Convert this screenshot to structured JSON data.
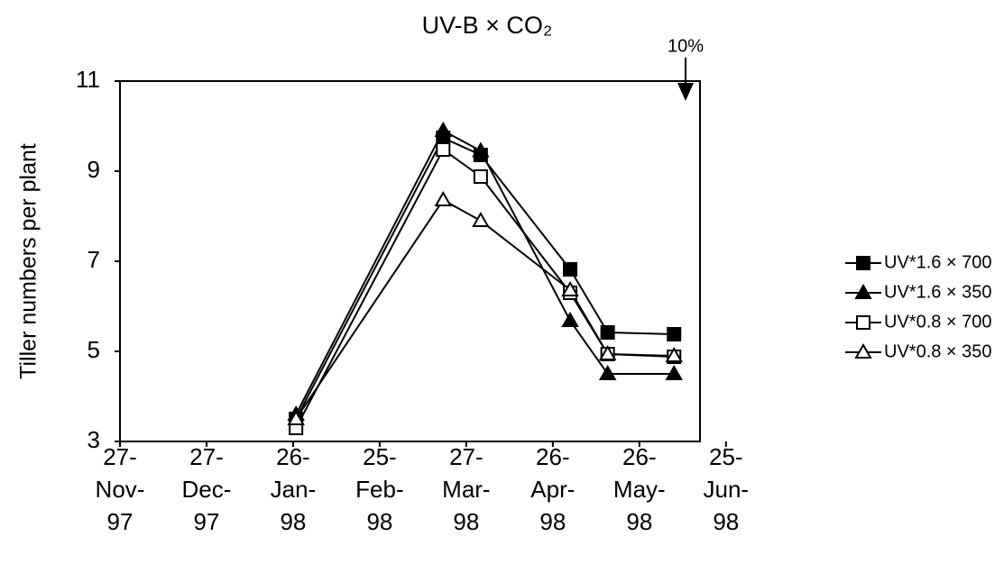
{
  "chart_data": {
    "type": "line",
    "title": "UV-B × CO₂",
    "y_label": "Tiller numbers per plant",
    "annotation": {
      "text": "10%",
      "x": "1998-06-11"
    },
    "x": [
      "1998-01-27",
      "1998-03-19",
      "1998-04-01",
      "1998-05-02",
      "1998-05-15",
      "1998-06-07"
    ],
    "series": [
      {
        "name": "UV*1.6 × 700",
        "color": "#000000",
        "marker": "square",
        "filled": true,
        "values": [
          3.5,
          9.74,
          9.36,
          6.82,
          5.42,
          5.38
        ]
      },
      {
        "name": "UV*1.6 × 350",
        "color": "#000000",
        "marker": "triangle",
        "filled": true,
        "values": [
          3.6,
          9.9,
          9.45,
          5.68,
          4.5,
          4.5
        ]
      },
      {
        "name": "UV*0.8 × 700",
        "color": "#000000",
        "marker": "square",
        "filled": false,
        "values": [
          3.3,
          9.48,
          8.88,
          6.3,
          4.94,
          4.88
        ]
      },
      {
        "name": "UV*0.8 × 350",
        "color": "#000000",
        "marker": "triangle",
        "filled": false,
        "values": [
          3.5,
          8.36,
          7.9,
          6.36,
          4.94,
          4.9
        ]
      }
    ],
    "xlim": [
      "1997-11-27",
      "1998-06-16"
    ],
    "xticks": [
      {
        "value": "1997-11-27",
        "label": "27-Nov-97"
      },
      {
        "value": "1997-12-27",
        "label": "27-Dec-97"
      },
      {
        "value": "1998-01-26",
        "label": "26-Jan-98"
      },
      {
        "value": "1998-02-25",
        "label": "25-Feb-98"
      },
      {
        "value": "1998-03-27",
        "label": "27-Mar-98"
      },
      {
        "value": "1998-04-26",
        "label": "26-Apr-98"
      },
      {
        "value": "1998-05-26",
        "label": "26-May-98"
      },
      {
        "value": "1998-06-25",
        "label": "25-Jun-98"
      }
    ],
    "ylim": [
      3,
      11
    ],
    "yticks": [
      3,
      5,
      7,
      9,
      11
    ],
    "grid": false,
    "legend": "right"
  }
}
